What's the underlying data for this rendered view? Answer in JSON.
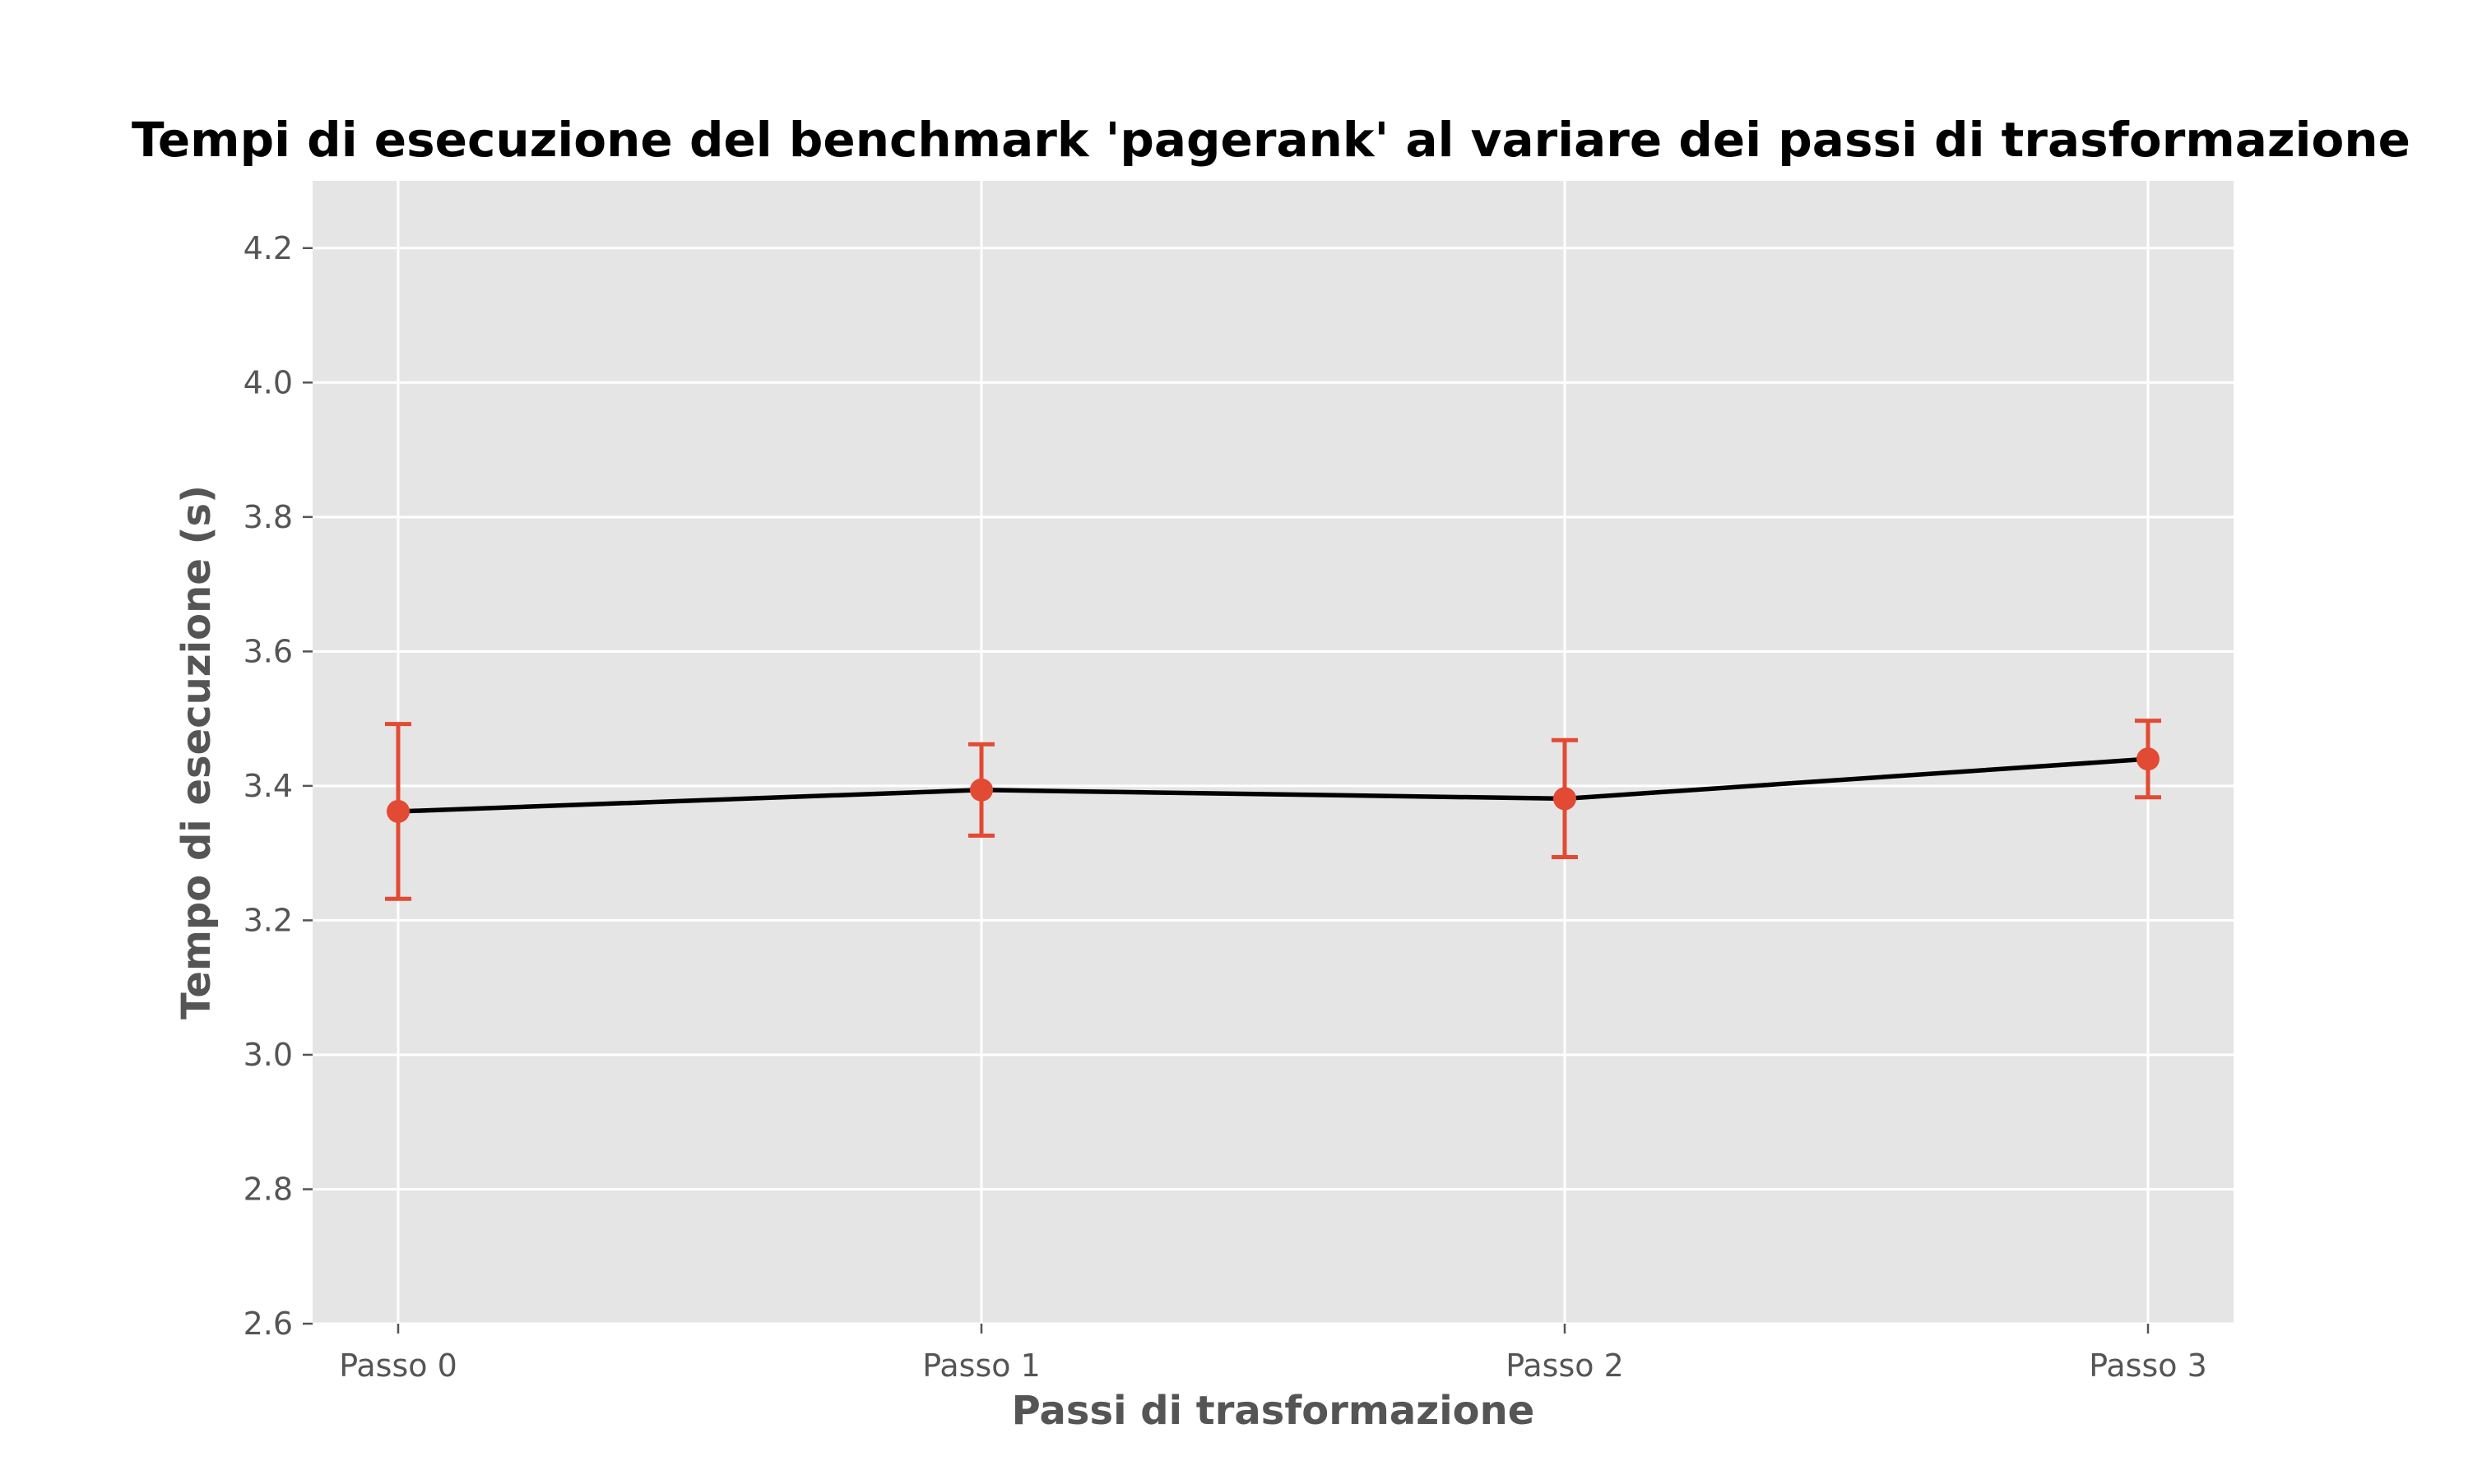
{
  "chart_data": {
    "type": "line",
    "title": "Tempi di esecuzione del benchmark 'pagerank' al variare dei passi di trasformazione",
    "xlabel": "Passi di trasformazione",
    "ylabel": "Tempo di esecuzione (s)",
    "categories": [
      "Passo 0",
      "Passo 1",
      "Passo 2",
      "Passo 3"
    ],
    "ylim": [
      2.6,
      4.3
    ],
    "yticks": [
      2.6,
      2.8,
      3.0,
      3.2,
      3.4,
      3.6,
      3.8,
      4.0,
      4.2
    ],
    "ytick_labels": [
      "2.6",
      "2.8",
      "3.0",
      "3.2",
      "3.4",
      "3.6",
      "3.8",
      "4.0",
      "4.2"
    ],
    "series": [
      {
        "values": [
          3.362,
          3.394,
          3.381,
          3.44
        ],
        "error": [
          0.13,
          0.068,
          0.087,
          0.057
        ]
      }
    ],
    "grid": true,
    "colors": {
      "line": "#000000",
      "marker": "#E24A33",
      "errorbar": "#E24A33",
      "plot_background": "#E5E5E5",
      "grid": "#FFFFFF"
    }
  }
}
